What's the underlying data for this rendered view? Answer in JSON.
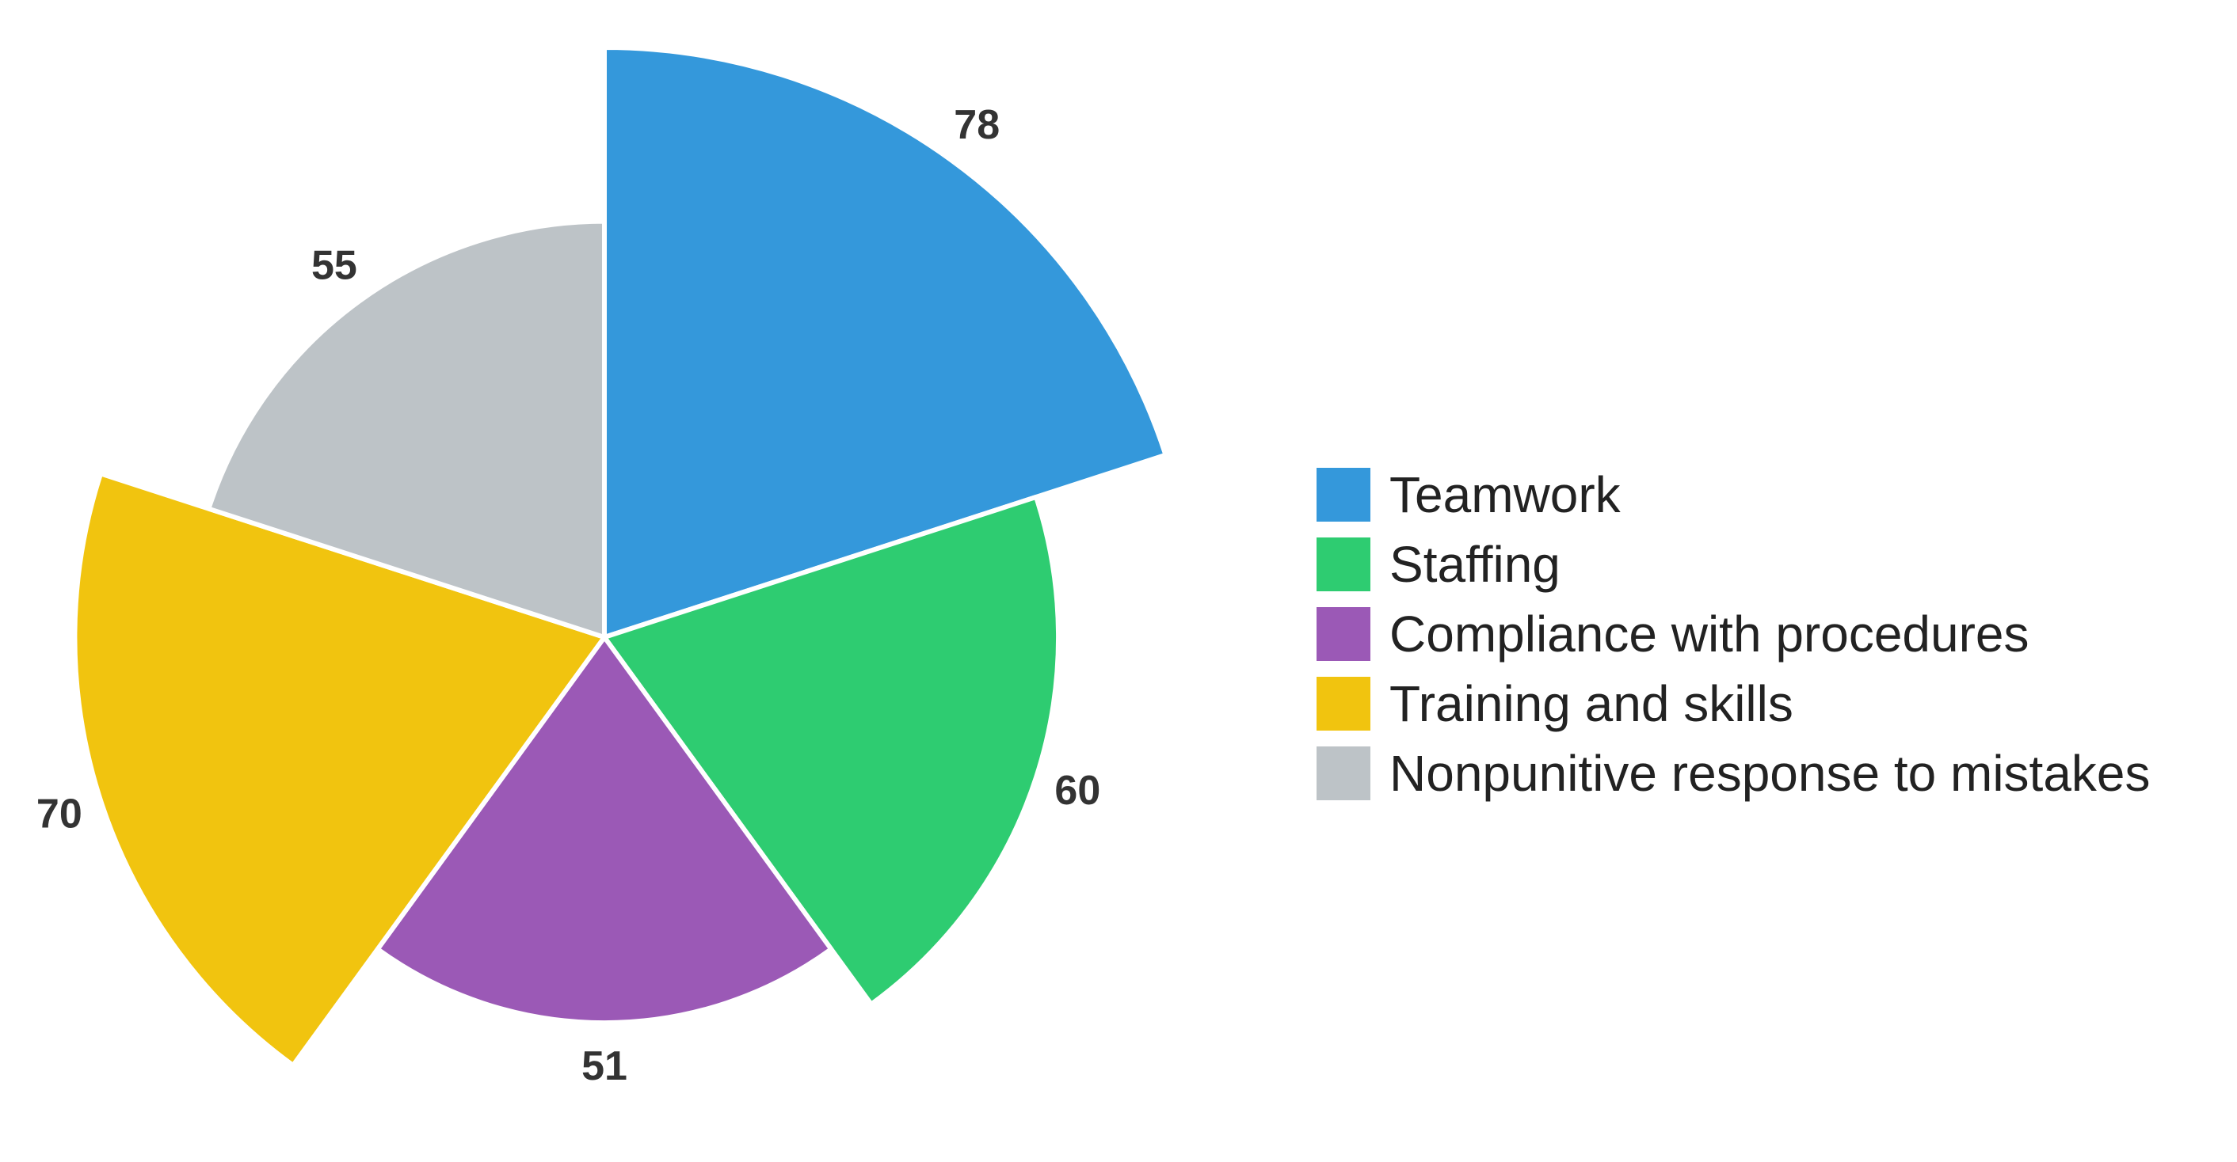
{
  "chart_data": {
    "type": "polar-area",
    "title": "",
    "categories": [
      "Teamwork",
      "Staffing",
      "Compliance with procedures",
      "Training and skills",
      "Nonpunitive response to mistakes"
    ],
    "values": [
      78,
      60,
      51,
      70,
      55
    ],
    "colors": [
      "#3498db",
      "#2ecc71",
      "#9b59b6",
      "#f1c40f",
      "#bdc3c7"
    ],
    "legend_position": "right",
    "data_labels": true
  },
  "legend": {
    "items": [
      {
        "label": "Teamwork",
        "color": "#3498db"
      },
      {
        "label": "Staffing",
        "color": "#2ecc71"
      },
      {
        "label": "Compliance with procedures",
        "color": "#9b59b6"
      },
      {
        "label": "Training and skills",
        "color": "#f1c40f"
      },
      {
        "label": "Nonpunitive response to mistakes",
        "color": "#bdc3c7"
      }
    ]
  }
}
